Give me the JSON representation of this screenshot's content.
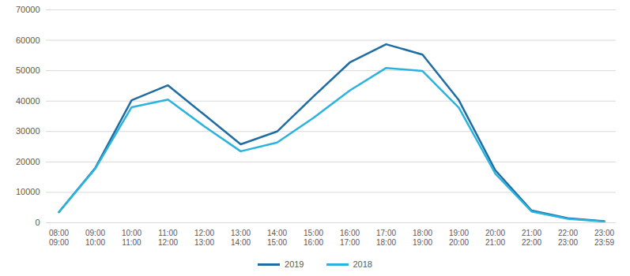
{
  "chart_data": {
    "type": "line",
    "categories": [
      "08:00\n09:00",
      "09:00\n10:00",
      "10:00\n11:00",
      "11:00\n12:00",
      "12:00\n13:00",
      "13:00\n14:00",
      "14:00\n15:00",
      "15:00\n16:00",
      "16:00\n17:00",
      "17:00\n18:00",
      "18:00\n19:00",
      "19:00\n20:00",
      "20:00\n21:00",
      "21:00\n22:00",
      "22:00\n23:00",
      "23:00\n23:59"
    ],
    "series": [
      {
        "name": "2019",
        "color": "#1f6ca3",
        "values": [
          3500,
          18000,
          40300,
          45200,
          35500,
          25800,
          30000,
          41500,
          52700,
          58700,
          55300,
          40300,
          17300,
          4000,
          1500,
          500
        ]
      },
      {
        "name": "2018",
        "color": "#2ab3df",
        "values": [
          3500,
          17800,
          38000,
          40500,
          31700,
          23500,
          26400,
          34500,
          43500,
          50900,
          49900,
          37800,
          16200,
          3700,
          1300,
          400
        ]
      }
    ],
    "ylim": [
      0,
      70000
    ],
    "yticks": [
      0,
      10000,
      20000,
      30000,
      40000,
      50000,
      60000,
      70000
    ],
    "grid": true,
    "legend": "bottom"
  }
}
